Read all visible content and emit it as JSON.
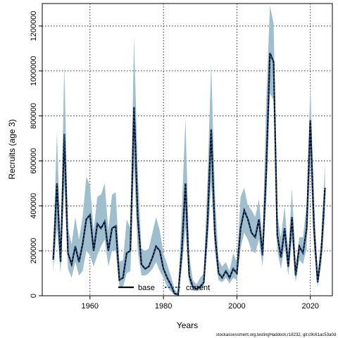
{
  "chart_data": {
    "type": "line",
    "title": "",
    "xlabel": "Years",
    "ylabel": "Recruits (age 3)",
    "xlim": [
      1947,
      2026
    ],
    "ylim": [
      0,
      1300000
    ],
    "xticks": [
      1960,
      1980,
      2000,
      2020
    ],
    "yticks": [
      0,
      200000,
      400000,
      600000,
      800000,
      1000000,
      1200000
    ],
    "grid": true,
    "legend_position": "bottom-center",
    "colors": {
      "band": "#9fbfcf",
      "base": "#000000",
      "current": "#1d4f91"
    },
    "x": [
      1950,
      1951,
      1952,
      1953,
      1954,
      1955,
      1956,
      1957,
      1958,
      1959,
      1960,
      1961,
      1962,
      1963,
      1964,
      1965,
      1966,
      1967,
      1968,
      1969,
      1970,
      1971,
      1972,
      1973,
      1974,
      1975,
      1976,
      1977,
      1978,
      1979,
      1980,
      1981,
      1982,
      1983,
      1984,
      1985,
      1986,
      1987,
      1988,
      1989,
      1990,
      1991,
      1992,
      1993,
      1994,
      1995,
      1996,
      1997,
      1998,
      1999,
      2000,
      2001,
      2002,
      2003,
      2004,
      2005,
      2006,
      2007,
      2008,
      2009,
      2010,
      2011,
      2012,
      2013,
      2014,
      2015,
      2016,
      2017,
      2018,
      2019,
      2020,
      2021,
      2022,
      2023,
      2024
    ],
    "series": [
      {
        "name": "base",
        "values": [
          160000,
          500000,
          150000,
          720000,
          190000,
          140000,
          220000,
          150000,
          230000,
          340000,
          360000,
          200000,
          320000,
          300000,
          330000,
          200000,
          300000,
          310000,
          70000,
          80000,
          190000,
          200000,
          840000,
          350000,
          140000,
          120000,
          130000,
          170000,
          220000,
          200000,
          120000,
          80000,
          50000,
          10000,
          5000,
          200000,
          500000,
          90000,
          40000,
          30000,
          40000,
          60000,
          320000,
          740000,
          280000,
          100000,
          80000,
          110000,
          80000,
          120000,
          100000,
          300000,
          380000,
          340000,
          280000,
          260000,
          340000,
          180000,
          560000,
          1080000,
          1040000,
          270000,
          170000,
          300000,
          130000,
          350000,
          90000,
          220000,
          190000,
          300000,
          780000,
          300000,
          60000,
          200000,
          480000
        ]
      },
      {
        "name": "current",
        "values": [
          160000,
          500000,
          150000,
          720000,
          190000,
          140000,
          220000,
          150000,
          230000,
          340000,
          360000,
          200000,
          320000,
          300000,
          330000,
          200000,
          300000,
          310000,
          70000,
          80000,
          190000,
          200000,
          840000,
          350000,
          140000,
          120000,
          130000,
          170000,
          220000,
          200000,
          120000,
          80000,
          50000,
          10000,
          5000,
          200000,
          500000,
          90000,
          40000,
          30000,
          40000,
          60000,
          320000,
          740000,
          280000,
          100000,
          80000,
          110000,
          80000,
          120000,
          100000,
          300000,
          380000,
          340000,
          280000,
          260000,
          340000,
          180000,
          560000,
          1080000,
          1040000,
          270000,
          170000,
          300000,
          130000,
          350000,
          90000,
          220000,
          190000,
          300000,
          780000,
          300000,
          60000,
          200000,
          480000
        ]
      }
    ],
    "band_lower": [
      110000,
      300000,
      100000,
      500000,
      120000,
      80000,
      150000,
      90000,
      110000,
      200000,
      180000,
      130000,
      180000,
      220000,
      250000,
      130000,
      200000,
      200000,
      40000,
      40000,
      100000,
      110000,
      580000,
      200000,
      90000,
      90000,
      100000,
      120000,
      150000,
      110000,
      80000,
      40000,
      20000,
      4000,
      2000,
      120000,
      300000,
      60000,
      25000,
      20000,
      25000,
      40000,
      220000,
      500000,
      200000,
      70000,
      60000,
      80000,
      55000,
      80000,
      70000,
      210000,
      280000,
      250000,
      200000,
      190000,
      250000,
      130000,
      420000,
      900000,
      870000,
      200000,
      120000,
      220000,
      90000,
      250000,
      60000,
      160000,
      140000,
      210000,
      590000,
      210000,
      40000,
      140000,
      360000
    ],
    "band_upper": [
      210000,
      730000,
      210000,
      1030000,
      300000,
      230000,
      350000,
      250000,
      350000,
      530000,
      490000,
      290000,
      440000,
      450000,
      500000,
      290000,
      450000,
      460000,
      150000,
      160000,
      340000,
      300000,
      1150000,
      560000,
      210000,
      200000,
      210000,
      280000,
      350000,
      290000,
      190000,
      140000,
      90000,
      30000,
      12000,
      380000,
      790000,
      180000,
      70000,
      50000,
      80000,
      100000,
      520000,
      1030000,
      460000,
      160000,
      130000,
      150000,
      110000,
      190000,
      150000,
      440000,
      480000,
      400000,
      380000,
      350000,
      430000,
      250000,
      870000,
      1290000,
      1210000,
      360000,
      260000,
      400000,
      190000,
      480000,
      130000,
      260000,
      260000,
      410000,
      930000,
      430000,
      90000,
      260000,
      590000
    ],
    "legend": [
      "base",
      "current"
    ],
    "footer": "stockassessment.org,testingHaddock,r18232, git:c9c61ac53a0d"
  }
}
